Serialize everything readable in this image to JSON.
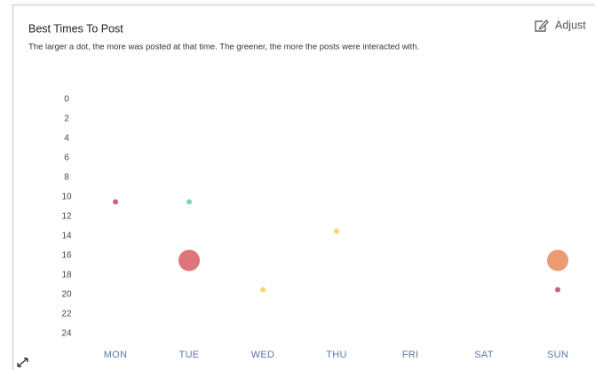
{
  "chart_data": {
    "type": "bubble",
    "title": "Best Times To Post",
    "subtitle": "The larger a dot, the more was posted at that time. The greener, the more the posts were interacted with.",
    "button": "Adjust",
    "categories": [
      "MON",
      "TUE",
      "WED",
      "THU",
      "FRI",
      "SAT",
      "SUN"
    ],
    "ylim": [
      0,
      24
    ],
    "y_inverted": true,
    "yticks": [
      0,
      2,
      4,
      6,
      8,
      10,
      12,
      14,
      16,
      18,
      20,
      22,
      24
    ],
    "grid": false,
    "points": [
      {
        "x": "MON",
        "y": 10.5,
        "size": 1,
        "color": "#c9506c"
      },
      {
        "x": "TUE",
        "y": 10.5,
        "size": 1,
        "color": "#6fd69c"
      },
      {
        "x": "TUE",
        "y": 16.5,
        "size": 16,
        "color": "#d9666a"
      },
      {
        "x": "WED",
        "y": 19.5,
        "size": 1,
        "color": "#f3d35c"
      },
      {
        "x": "THU",
        "y": 13.5,
        "size": 1,
        "color": "#f3d35c"
      },
      {
        "x": "SUN",
        "y": 16.5,
        "size": 16,
        "color": "#e8905f"
      },
      {
        "x": "SUN",
        "y": 19.5,
        "size": 1,
        "color": "#c9506c"
      }
    ]
  }
}
